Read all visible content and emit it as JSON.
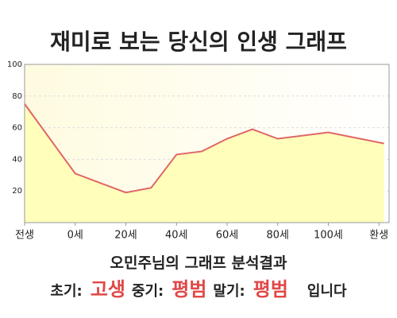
{
  "title": "재미로 보는 당신의 인생 그래프",
  "chart_data": {
    "type": "area",
    "x": [
      -20,
      0,
      20,
      30,
      40,
      50,
      60,
      70,
      80,
      100,
      122
    ],
    "series": [
      {
        "values": [
          75,
          31,
          19,
          22,
          43,
          45,
          53,
          59,
          53,
          57,
          50
        ],
        "color": "#e06666",
        "fill": "#ffffbb"
      }
    ],
    "xlim": [
      -20,
      124
    ],
    "ylim": [
      0,
      100
    ],
    "xticks": [
      {
        "value": -20,
        "label": "전생"
      },
      {
        "value": 0,
        "label": "0세"
      },
      {
        "value": 20,
        "label": "20세"
      },
      {
        "value": 40,
        "label": "40세"
      },
      {
        "value": 60,
        "label": "60세"
      },
      {
        "value": 80,
        "label": "80세"
      },
      {
        "value": 100,
        "label": "100세"
      },
      {
        "value": 120,
        "label": "환생"
      }
    ],
    "yticks": [
      20,
      40,
      60,
      80,
      100
    ],
    "grid": true
  },
  "result": {
    "heading": "오민주님의 그래프 분석결과",
    "items": [
      {
        "label": "초기:",
        "value": "고생"
      },
      {
        "label": "중기:",
        "value": "평범"
      },
      {
        "label": "말기:",
        "value": "평범"
      }
    ],
    "suffix": "입니다"
  }
}
